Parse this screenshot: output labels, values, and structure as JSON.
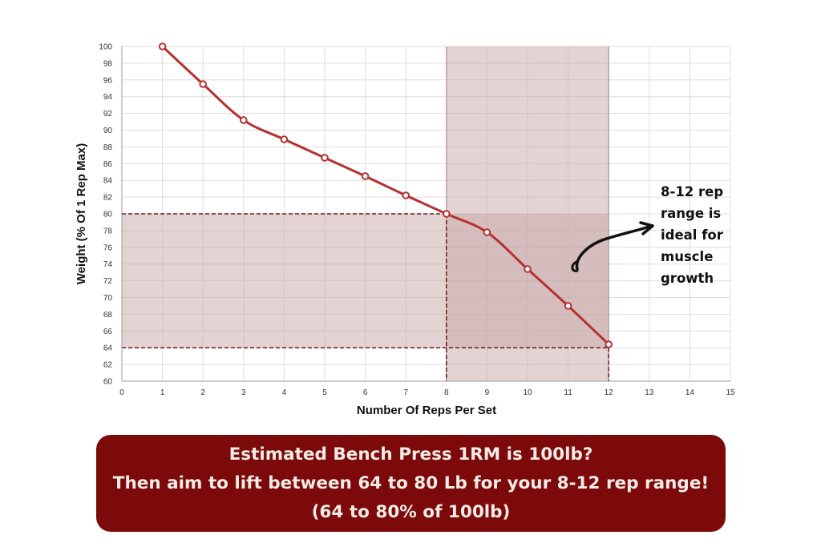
{
  "chart_data": {
    "type": "line",
    "xlabel": "Number Of Reps Per Set",
    "ylabel": "Weight (% Of 1 Rep Max)",
    "xlim": [
      0,
      15
    ],
    "ylim": [
      60,
      100
    ],
    "x_ticks": [
      "0",
      "1",
      "2",
      "3",
      "4",
      "5",
      "6",
      "7",
      "8",
      "9",
      "10",
      "11",
      "12",
      "13",
      "14",
      "15"
    ],
    "y_ticks": [
      "60",
      "62",
      "64",
      "66",
      "68",
      "70",
      "72",
      "74",
      "76",
      "78",
      "80",
      "82",
      "84",
      "86",
      "88",
      "90",
      "92",
      "94",
      "96",
      "98",
      "100"
    ],
    "grid": true,
    "series": [
      {
        "x": [
          1,
          2,
          3,
          4,
          5,
          6,
          7,
          8,
          9,
          10,
          11,
          12
        ],
        "y": [
          100,
          95.5,
          91.2,
          88.9,
          86.7,
          84.5,
          82.2,
          80,
          77.8,
          73.4,
          69,
          64.4
        ],
        "color": "#b5322f"
      }
    ],
    "highlight": {
      "rep_range": [
        8,
        12
      ],
      "weight_range": [
        64,
        80
      ],
      "fill_color": "#c7a8a8"
    },
    "annotation": {
      "lines": [
        "8-12 rep",
        "range is",
        "ideal for",
        "muscle",
        "growth"
      ]
    }
  },
  "banner": {
    "line1": "Estimated Bench Press 1RM is 100lb?",
    "line2": "Then aim to lift between 64 to 80 Lb for your 8-12 rep range!",
    "line3": "(64 to 80% of 100lb)",
    "background": "#7d0a0a"
  }
}
